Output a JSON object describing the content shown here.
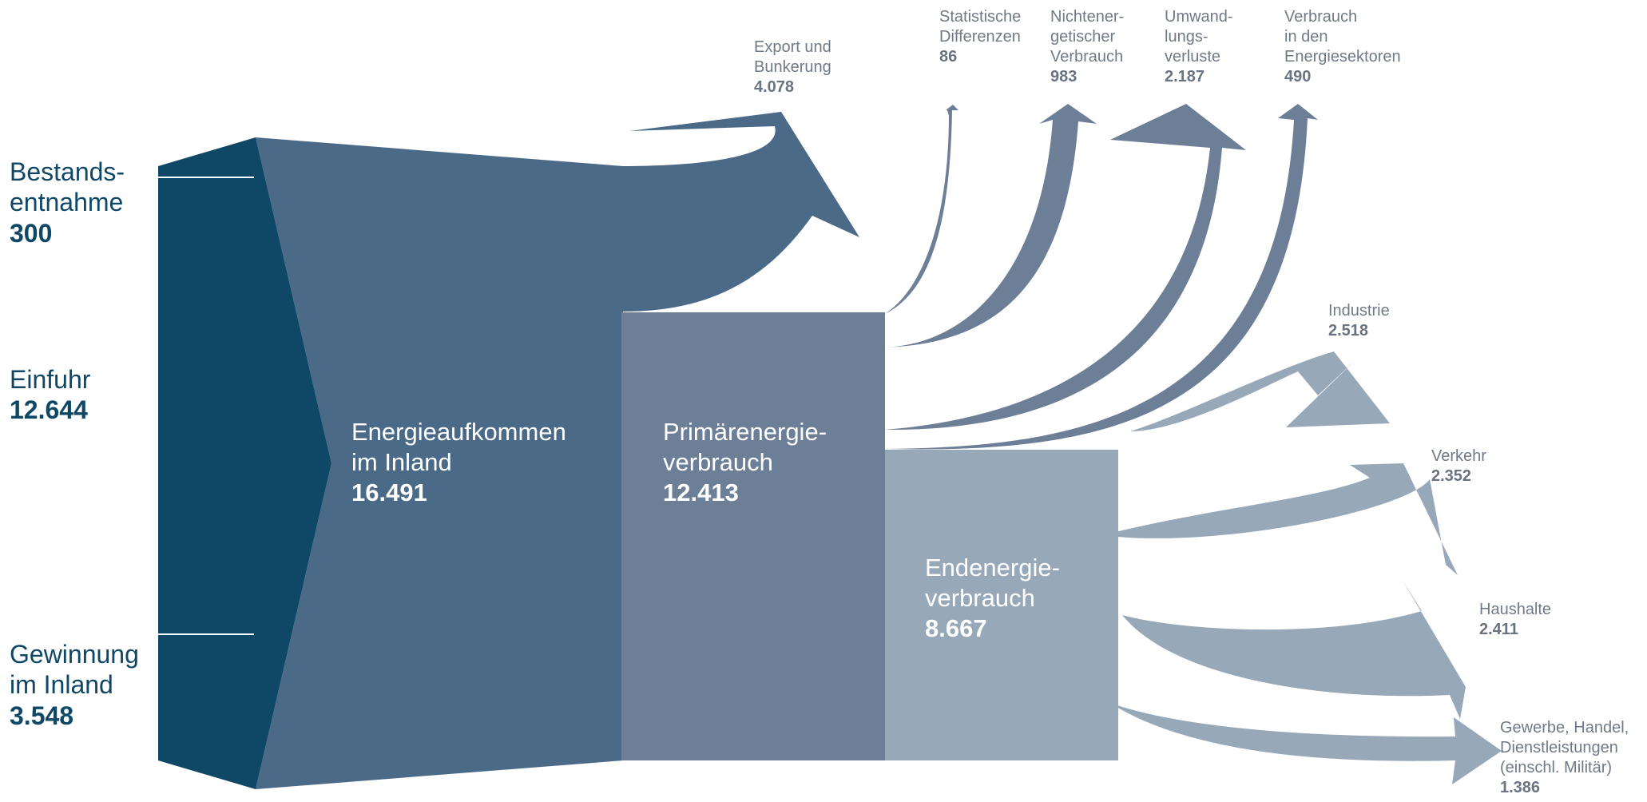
{
  "colors": {
    "sources": "#0f4866",
    "energieaufkommen": "#4b6a87",
    "primaerenergie": "#6d7e97",
    "endenergie": "#97a8b9",
    "source_text": "#0f4866",
    "output_text": "#707a86"
  },
  "sources": [
    {
      "name": "Bestands-\nentnahme",
      "value": "300"
    },
    {
      "name": "Einfuhr",
      "value": "12.644"
    },
    {
      "name": "Gewinnung\nim Inland",
      "value": "3.548"
    }
  ],
  "nodes": {
    "energieaufkommen": {
      "name": "Energieaufkommen\nim Inland",
      "value": "16.491"
    },
    "primaerenergie": {
      "name": "Primärenergie-\nverbrauch",
      "value": "12.413"
    },
    "endenergie": {
      "name": "Endenergie-\nverbrauch",
      "value": "8.667"
    }
  },
  "outflows": {
    "export": {
      "name": "Export und\nBunkerung",
      "value": "4.078"
    },
    "statistische": {
      "name": "Statistische\nDifferenzen",
      "value": "86"
    },
    "nichtenergetisch": {
      "name": "Nichtener-\ngetischer\nVerbrauch",
      "value": "983"
    },
    "umwandlung": {
      "name": "Umwand-\nlungs-\nverluste",
      "value": "2.187"
    },
    "energiesektoren": {
      "name": "Verbrauch\nin den\nEnergiesektoren",
      "value": "490"
    },
    "industrie": {
      "name": "Industrie",
      "value": "2.518"
    },
    "verkehr": {
      "name": "Verkehr",
      "value": "2.352"
    },
    "haushalte": {
      "name": "Haushalte",
      "value": "2.411"
    },
    "gewerbe": {
      "name": "Gewerbe, Handel,\nDienstleistungen\n(einschl. Militär)",
      "value": "1.386"
    }
  }
}
